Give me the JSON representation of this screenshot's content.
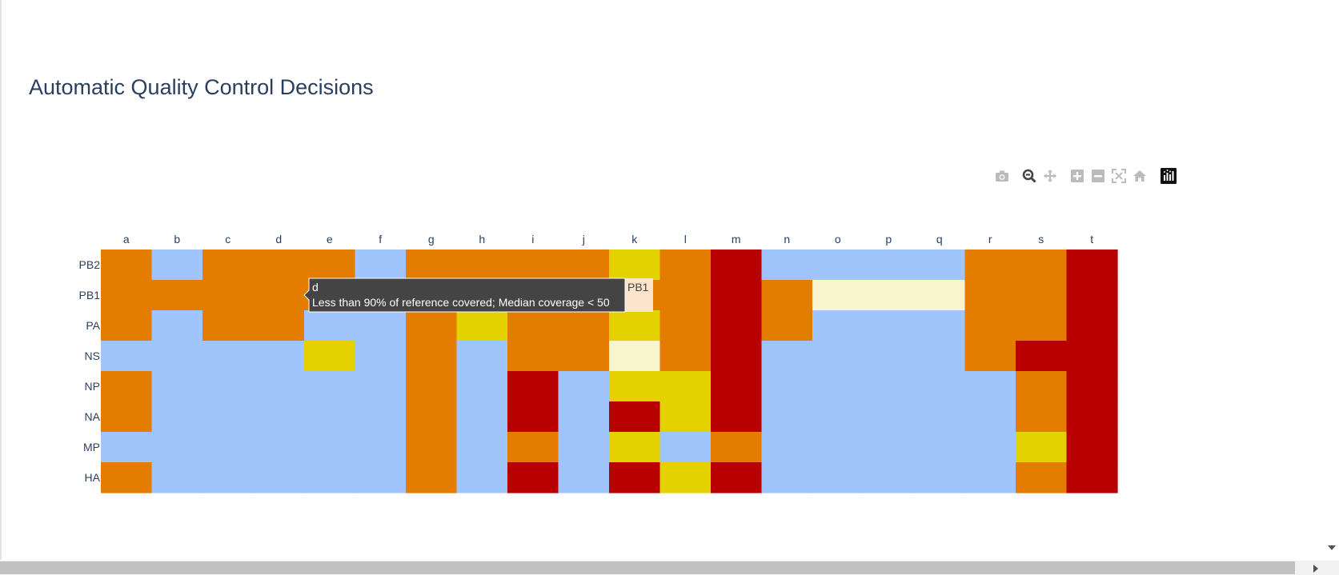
{
  "page": {
    "title": "Automatic Quality Control Decisions"
  },
  "modebar": [
    {
      "icon": "camera-icon",
      "label": "Download plot as a png",
      "active": false
    },
    {
      "icon": "zoom-icon",
      "label": "Zoom",
      "active": true
    },
    {
      "icon": "pan-icon",
      "label": "Pan",
      "active": false
    },
    {
      "icon": "zoom-in-icon",
      "label": "Zoom in",
      "active": false
    },
    {
      "icon": "zoom-out-icon",
      "label": "Zoom out",
      "active": false
    },
    {
      "icon": "autoscale-icon",
      "label": "Autoscale",
      "active": false
    },
    {
      "icon": "reset-axes-icon",
      "label": "Reset axes",
      "active": false
    },
    {
      "icon": "plotly-logo-icon",
      "label": "Produced with Plotly",
      "active": false
    }
  ],
  "chart_data": {
    "type": "heatmap",
    "title": "Automatic Quality Control Decisions",
    "x": [
      "a",
      "b",
      "c",
      "d",
      "e",
      "f",
      "g",
      "h",
      "i",
      "j",
      "k",
      "l",
      "m",
      "n",
      "o",
      "p",
      "q",
      "r",
      "s",
      "t"
    ],
    "y": [
      "PB2",
      "PB1",
      "PA",
      "NS",
      "NP",
      "NA",
      "MP",
      "HA"
    ],
    "xaxis_side": "top",
    "colors": {
      "blue": "#a0c4fc",
      "orange": "#e47c00",
      "yellow": "#e4d200",
      "cream": "#f8f4cc",
      "red": "#b80000"
    },
    "z": [
      [
        "orange",
        "blue",
        "orange",
        "orange",
        "orange",
        "blue",
        "orange",
        "orange",
        "orange",
        "orange",
        "yellow",
        "orange",
        "red",
        "blue",
        "blue",
        "blue",
        "blue",
        "orange",
        "orange",
        "red"
      ],
      [
        "orange",
        "orange",
        "orange",
        "orange",
        "orange",
        "orange",
        "orange",
        "orange",
        "orange",
        "orange",
        "orange",
        "orange",
        "red",
        "orange",
        "cream",
        "cream",
        "cream",
        "orange",
        "orange",
        "red"
      ],
      [
        "orange",
        "blue",
        "orange",
        "orange",
        "blue",
        "blue",
        "orange",
        "yellow",
        "orange",
        "orange",
        "yellow",
        "orange",
        "red",
        "orange",
        "blue",
        "blue",
        "blue",
        "orange",
        "orange",
        "red"
      ],
      [
        "blue",
        "blue",
        "blue",
        "blue",
        "yellow",
        "blue",
        "orange",
        "blue",
        "orange",
        "orange",
        "cream",
        "orange",
        "red",
        "blue",
        "blue",
        "blue",
        "blue",
        "orange",
        "red",
        "red"
      ],
      [
        "orange",
        "blue",
        "blue",
        "blue",
        "blue",
        "blue",
        "orange",
        "blue",
        "red",
        "blue",
        "yellow",
        "yellow",
        "red",
        "blue",
        "blue",
        "blue",
        "blue",
        "blue",
        "orange",
        "red"
      ],
      [
        "orange",
        "blue",
        "blue",
        "blue",
        "blue",
        "blue",
        "orange",
        "blue",
        "red",
        "blue",
        "red",
        "yellow",
        "red",
        "blue",
        "blue",
        "blue",
        "blue",
        "blue",
        "orange",
        "red"
      ],
      [
        "blue",
        "blue",
        "blue",
        "blue",
        "blue",
        "blue",
        "orange",
        "blue",
        "orange",
        "blue",
        "yellow",
        "blue",
        "orange",
        "blue",
        "blue",
        "blue",
        "blue",
        "blue",
        "yellow",
        "red"
      ],
      [
        "orange",
        "blue",
        "blue",
        "blue",
        "blue",
        "blue",
        "orange",
        "blue",
        "red",
        "blue",
        "red",
        "yellow",
        "red",
        "blue",
        "blue",
        "blue",
        "blue",
        "blue",
        "orange",
        "red"
      ]
    ],
    "hover": {
      "x": "d",
      "y": "PB1",
      "title": "d",
      "text": "Less than 90% of reference covered; Median coverage < 50",
      "axis_label": "PB1"
    }
  }
}
